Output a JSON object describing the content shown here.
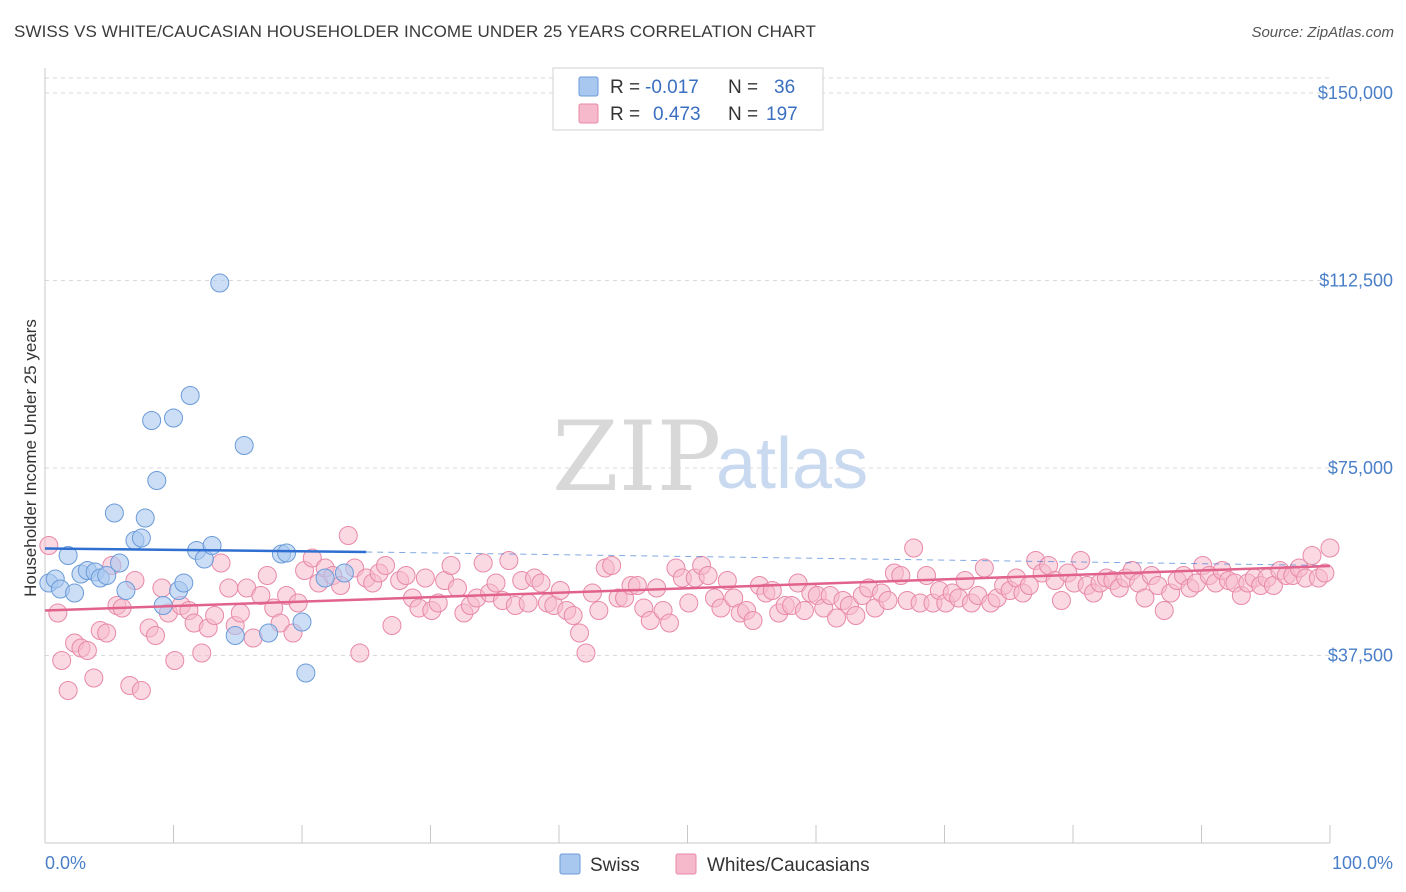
{
  "title": "SWISS VS WHITE/CAUCASIAN HOUSEHOLDER INCOME UNDER 25 YEARS CORRELATION CHART",
  "source": "Source: ZipAtlas.com",
  "watermark": {
    "zip": "ZIP",
    "atlas": "atlas"
  },
  "legend_box": {
    "rows": [
      {
        "r_label": "R =",
        "r_value": "-0.017",
        "n_label": "N =",
        "n_value": "36"
      },
      {
        "r_label": "R =",
        "r_value": "0.473",
        "n_label": "N =",
        "n_value": "197"
      }
    ]
  },
  "bottom_legend": [
    "Swiss",
    "Whites/Caucasians"
  ],
  "colors": {
    "swiss_fill": "#a9c8f0",
    "swiss_stroke": "#6b9bd8",
    "swiss_line": "#2e6fd1",
    "white_fill": "#f6b9cc",
    "white_stroke": "#e889a8",
    "white_line": "#e0628d",
    "tick_text": "#4a7fc8",
    "grid": "#d9d9d9"
  },
  "chart_data": {
    "type": "scatter",
    "title": "SWISS VS WHITE/CAUCASIAN HOUSEHOLDER INCOME UNDER 25 YEARS CORRELATION CHART",
    "xlabel": "",
    "ylabel": "Householder Income Under 25 years",
    "xlim": [
      0,
      100
    ],
    "ylim": [
      0,
      155000
    ],
    "x_tick_labels": [
      "0.0%",
      "100.0%"
    ],
    "y_ticks": [
      37500,
      75000,
      112500,
      150000
    ],
    "y_tick_labels": [
      "$37,500",
      "$75,000",
      "$112,500",
      "$150,000"
    ],
    "grid": "horizontal dashed",
    "legend_position": "top-center",
    "series": [
      {
        "name": "Swiss",
        "R": -0.017,
        "N": 36,
        "trend": {
          "x": [
            0,
            25
          ],
          "y": [
            58900,
            58200
          ],
          "dashed_to": [
            100,
            55500
          ]
        },
        "points": [
          [
            0.3,
            52000
          ],
          [
            0.8,
            52800
          ],
          [
            1.2,
            50800
          ],
          [
            1.8,
            57500
          ],
          [
            2.3,
            50000
          ],
          [
            2.8,
            53800
          ],
          [
            3.3,
            54500
          ],
          [
            3.9,
            54200
          ],
          [
            4.3,
            53000
          ],
          [
            4.8,
            53500
          ],
          [
            5.4,
            66000
          ],
          [
            5.8,
            56000
          ],
          [
            6.3,
            50500
          ],
          [
            7.0,
            60500
          ],
          [
            7.5,
            61000
          ],
          [
            7.8,
            65000
          ],
          [
            8.3,
            84500
          ],
          [
            8.7,
            72500
          ],
          [
            9.2,
            47500
          ],
          [
            10.0,
            85000
          ],
          [
            10.4,
            50500
          ],
          [
            10.8,
            52000
          ],
          [
            11.3,
            89500
          ],
          [
            11.8,
            58500
          ],
          [
            12.4,
            56800
          ],
          [
            13.0,
            59500
          ],
          [
            13.6,
            112000
          ],
          [
            14.8,
            41500
          ],
          [
            15.5,
            79500
          ],
          [
            17.4,
            42000
          ],
          [
            18.4,
            57800
          ],
          [
            18.8,
            58000
          ],
          [
            20.0,
            44200
          ],
          [
            20.3,
            34000
          ],
          [
            21.8,
            53000
          ],
          [
            23.3,
            54000
          ]
        ]
      },
      {
        "name": "Whites/Caucasians",
        "R": 0.473,
        "N": 197,
        "trend": {
          "x": [
            0,
            100
          ],
          "y": [
            46500,
            55400
          ]
        },
        "points": [
          [
            0.3,
            59500
          ],
          [
            1.0,
            46000
          ],
          [
            1.3,
            36500
          ],
          [
            1.8,
            30500
          ],
          [
            2.3,
            40000
          ],
          [
            2.8,
            39000
          ],
          [
            3.3,
            38500
          ],
          [
            3.8,
            33000
          ],
          [
            4.3,
            42500
          ],
          [
            4.8,
            42000
          ],
          [
            5.2,
            55500
          ],
          [
            5.6,
            47500
          ],
          [
            6.0,
            47000
          ],
          [
            6.6,
            31500
          ],
          [
            7.0,
            52500
          ],
          [
            7.5,
            30500
          ],
          [
            8.1,
            43000
          ],
          [
            8.6,
            41500
          ],
          [
            9.1,
            51000
          ],
          [
            9.6,
            46000
          ],
          [
            10.1,
            36500
          ],
          [
            10.6,
            47500
          ],
          [
            11.2,
            46500
          ],
          [
            11.6,
            44000
          ],
          [
            12.2,
            38000
          ],
          [
            12.7,
            43000
          ],
          [
            13.2,
            45500
          ],
          [
            13.7,
            56000
          ],
          [
            14.3,
            51000
          ],
          [
            14.8,
            43500
          ],
          [
            15.2,
            46000
          ],
          [
            15.7,
            51000
          ],
          [
            16.2,
            41000
          ],
          [
            16.8,
            49500
          ],
          [
            17.3,
            53500
          ],
          [
            17.8,
            47000
          ],
          [
            18.3,
            44000
          ],
          [
            18.8,
            49500
          ],
          [
            19.3,
            42000
          ],
          [
            19.7,
            48000
          ],
          [
            20.2,
            54500
          ],
          [
            20.8,
            57000
          ],
          [
            21.3,
            52000
          ],
          [
            21.8,
            55000
          ],
          [
            22.4,
            53500
          ],
          [
            23.0,
            51500
          ],
          [
            23.6,
            61500
          ],
          [
            24.1,
            55000
          ],
          [
            24.5,
            38000
          ],
          [
            25.0,
            53000
          ],
          [
            25.5,
            52000
          ],
          [
            26.0,
            54000
          ],
          [
            26.5,
            55500
          ],
          [
            27.0,
            43500
          ],
          [
            27.6,
            52500
          ],
          [
            28.1,
            53500
          ],
          [
            28.6,
            49000
          ],
          [
            29.1,
            47000
          ],
          [
            29.6,
            53000
          ],
          [
            30.1,
            46500
          ],
          [
            30.6,
            48000
          ],
          [
            31.1,
            52500
          ],
          [
            31.6,
            55500
          ],
          [
            32.1,
            51000
          ],
          [
            32.6,
            46000
          ],
          [
            33.1,
            47500
          ],
          [
            33.6,
            49000
          ],
          [
            34.1,
            56000
          ],
          [
            34.6,
            50000
          ],
          [
            35.1,
            52000
          ],
          [
            35.6,
            48500
          ],
          [
            36.1,
            56500
          ],
          [
            36.6,
            47500
          ],
          [
            37.1,
            52500
          ],
          [
            37.6,
            48000
          ],
          [
            38.1,
            53000
          ],
          [
            38.6,
            52000
          ],
          [
            39.1,
            48000
          ],
          [
            39.6,
            47500
          ],
          [
            40.1,
            50500
          ],
          [
            40.6,
            46500
          ],
          [
            41.1,
            45500
          ],
          [
            41.6,
            42000
          ],
          [
            42.1,
            38000
          ],
          [
            42.6,
            50000
          ],
          [
            43.1,
            46500
          ],
          [
            43.6,
            55000
          ],
          [
            44.1,
            55500
          ],
          [
            44.6,
            49000
          ],
          [
            45.1,
            49000
          ],
          [
            45.6,
            51500
          ],
          [
            46.1,
            51500
          ],
          [
            46.6,
            47000
          ],
          [
            47.1,
            44500
          ],
          [
            47.6,
            51000
          ],
          [
            48.1,
            46500
          ],
          [
            48.6,
            44000
          ],
          [
            49.1,
            55000
          ],
          [
            49.6,
            53000
          ],
          [
            50.1,
            48000
          ],
          [
            50.6,
            53000
          ],
          [
            51.1,
            55500
          ],
          [
            51.6,
            53500
          ],
          [
            52.1,
            49000
          ],
          [
            52.6,
            47000
          ],
          [
            53.1,
            52500
          ],
          [
            53.6,
            49000
          ],
          [
            54.1,
            46000
          ],
          [
            54.6,
            46500
          ],
          [
            55.1,
            44500
          ],
          [
            55.6,
            51500
          ],
          [
            56.1,
            50000
          ],
          [
            56.6,
            50500
          ],
          [
            57.1,
            46000
          ],
          [
            57.6,
            47500
          ],
          [
            58.1,
            47500
          ],
          [
            58.6,
            52000
          ],
          [
            59.1,
            46500
          ],
          [
            59.6,
            50000
          ],
          [
            60.1,
            49500
          ],
          [
            60.6,
            47000
          ],
          [
            61.1,
            49500
          ],
          [
            61.6,
            45000
          ],
          [
            62.1,
            48500
          ],
          [
            62.6,
            47500
          ],
          [
            63.1,
            45500
          ],
          [
            63.6,
            49500
          ],
          [
            64.1,
            51000
          ],
          [
            64.6,
            47000
          ],
          [
            65.1,
            50000
          ],
          [
            65.6,
            48500
          ],
          [
            66.1,
            54000
          ],
          [
            66.6,
            53500
          ],
          [
            67.1,
            48500
          ],
          [
            67.6,
            59000
          ],
          [
            68.1,
            48000
          ],
          [
            68.6,
            53500
          ],
          [
            69.1,
            48000
          ],
          [
            69.6,
            50500
          ],
          [
            70.1,
            48000
          ],
          [
            70.6,
            50000
          ],
          [
            71.1,
            49000
          ],
          [
            71.6,
            52500
          ],
          [
            72.1,
            48000
          ],
          [
            72.6,
            49500
          ],
          [
            73.1,
            55000
          ],
          [
            73.6,
            48000
          ],
          [
            74.1,
            49000
          ],
          [
            74.6,
            51500
          ],
          [
            75.1,
            50500
          ],
          [
            75.6,
            53000
          ],
          [
            76.1,
            50000
          ],
          [
            76.6,
            51500
          ],
          [
            77.1,
            56500
          ],
          [
            77.6,
            54000
          ],
          [
            78.1,
            55500
          ],
          [
            78.6,
            52500
          ],
          [
            79.1,
            48500
          ],
          [
            79.6,
            54000
          ],
          [
            80.1,
            52000
          ],
          [
            80.6,
            56500
          ],
          [
            81.1,
            51500
          ],
          [
            81.6,
            50000
          ],
          [
            82.1,
            52000
          ],
          [
            82.6,
            53000
          ],
          [
            83.1,
            52500
          ],
          [
            83.6,
            51000
          ],
          [
            84.1,
            53000
          ],
          [
            84.6,
            54500
          ],
          [
            85.1,
            52000
          ],
          [
            85.6,
            49000
          ],
          [
            86.1,
            53500
          ],
          [
            86.6,
            51500
          ],
          [
            87.1,
            46500
          ],
          [
            87.6,
            50000
          ],
          [
            88.1,
            52500
          ],
          [
            88.6,
            53500
          ],
          [
            89.1,
            51000
          ],
          [
            89.6,
            52000
          ],
          [
            90.1,
            55500
          ],
          [
            90.6,
            53500
          ],
          [
            91.1,
            52000
          ],
          [
            91.6,
            54500
          ],
          [
            92.1,
            52500
          ],
          [
            92.6,
            52000
          ],
          [
            93.1,
            49500
          ],
          [
            93.6,
            52000
          ],
          [
            94.1,
            53000
          ],
          [
            94.6,
            51500
          ],
          [
            95.1,
            53000
          ],
          [
            95.6,
            51500
          ],
          [
            96.1,
            54500
          ],
          [
            96.6,
            53500
          ],
          [
            97.1,
            53500
          ],
          [
            97.6,
            55000
          ],
          [
            98.1,
            53000
          ],
          [
            98.6,
            57500
          ],
          [
            99.1,
            53000
          ],
          [
            99.6,
            54000
          ],
          [
            100.0,
            59000
          ]
        ]
      }
    ]
  }
}
